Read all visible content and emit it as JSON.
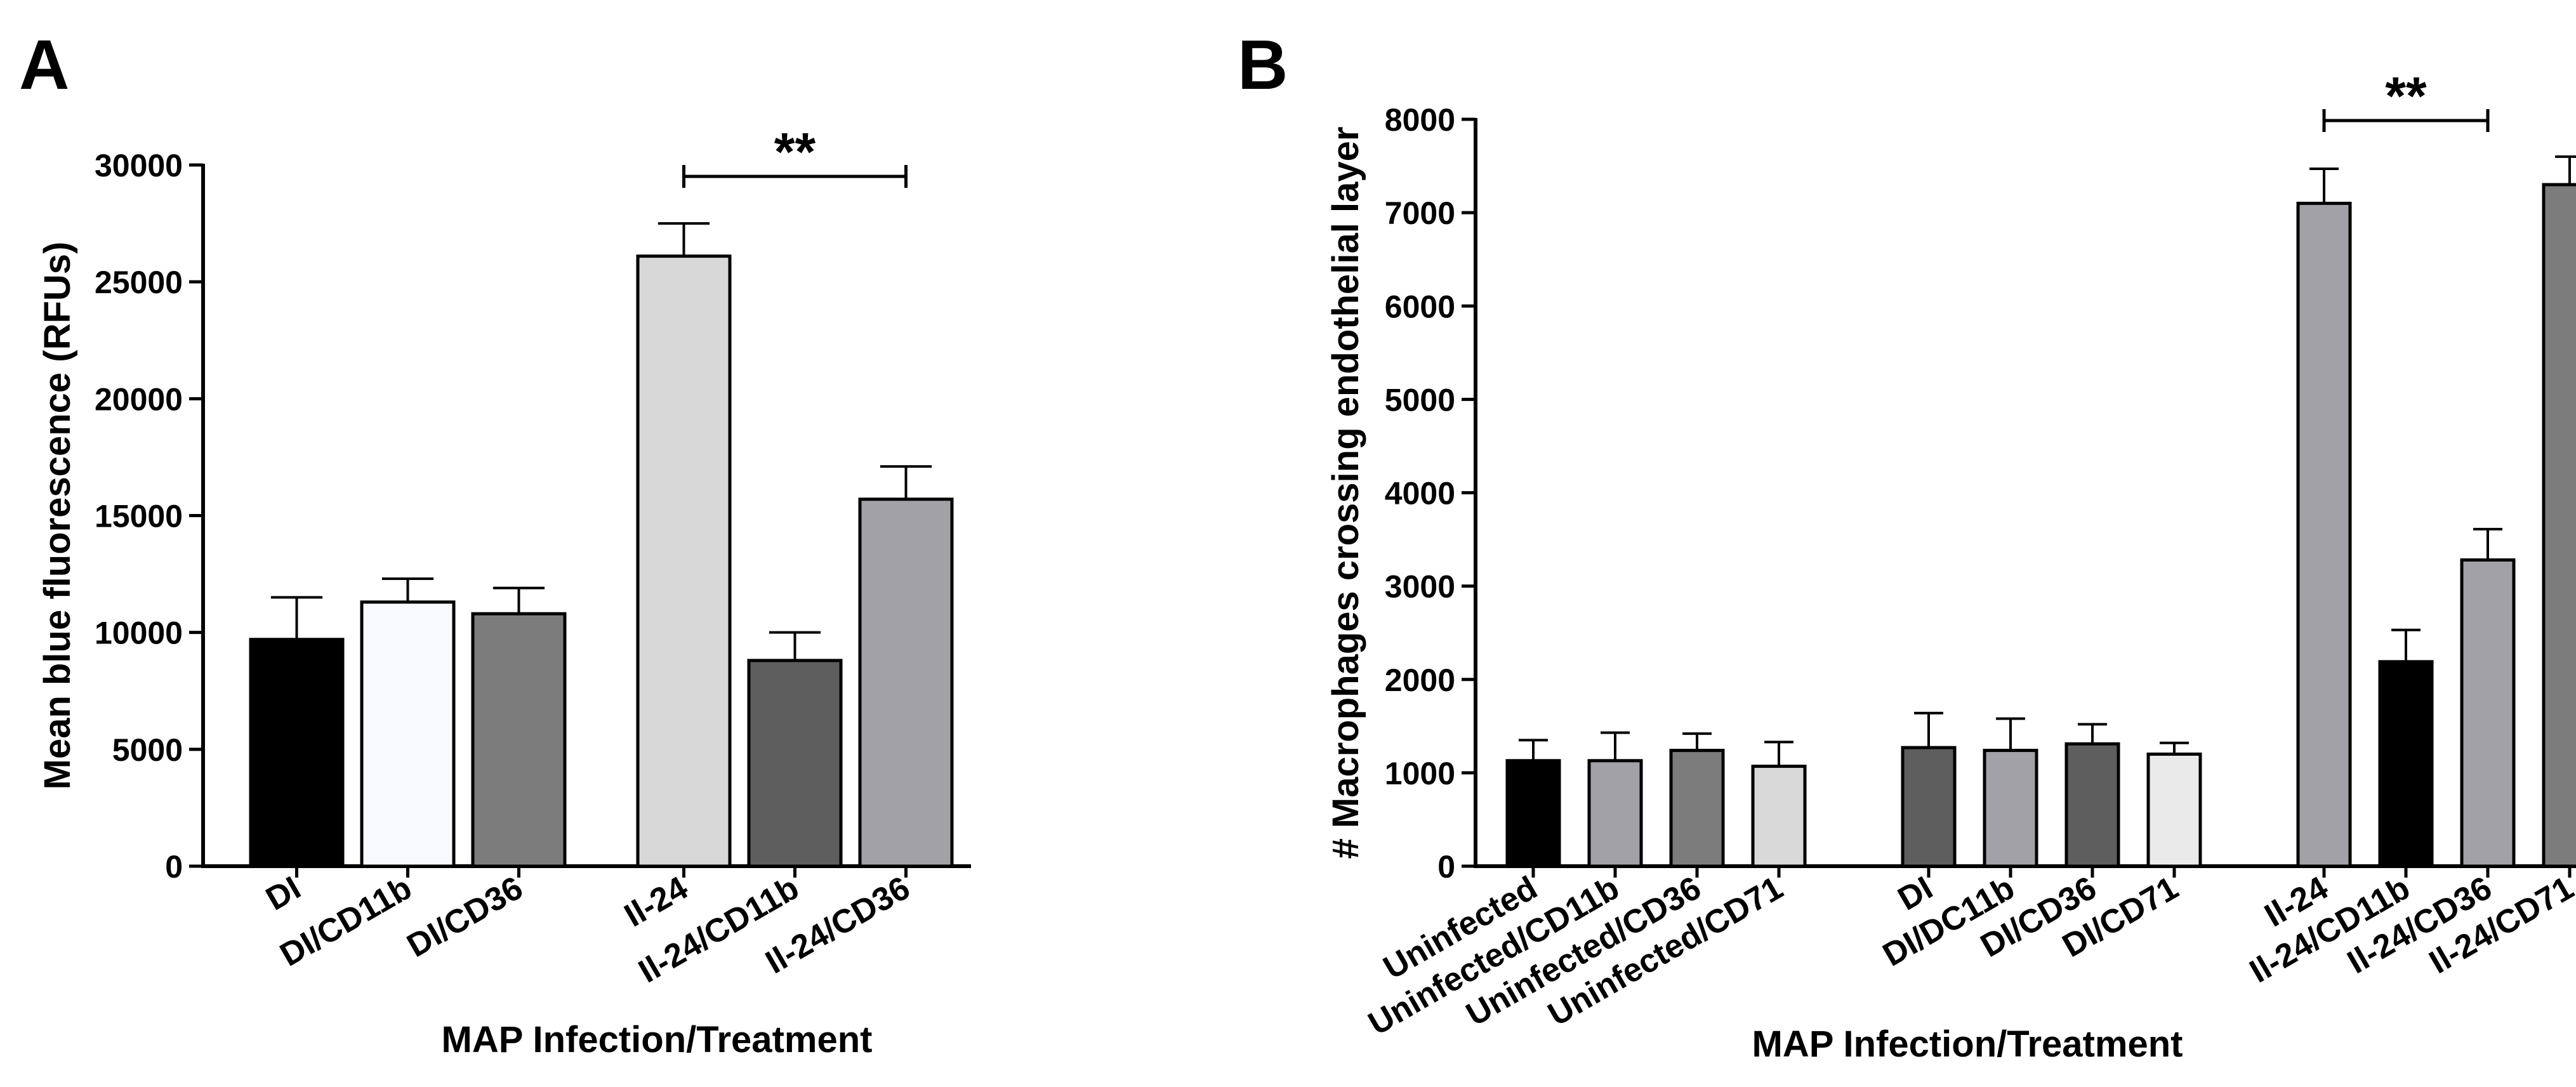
{
  "panels": {
    "A": {
      "label": "A"
    },
    "B": {
      "label": "B"
    }
  },
  "chart_data": [
    {
      "type": "bar",
      "panel": "A",
      "ylabel": "Mean blue fluorescence (RFUs)",
      "xlabel": "MAP Infection/Treatment",
      "ylim": [
        0,
        30000
      ],
      "yticks": [
        0,
        5000,
        10000,
        15000,
        20000,
        25000,
        30000
      ],
      "categories": [
        "DI",
        "DI/CD11b",
        "DI/CD36",
        "Il-24",
        "Il-24/CD11b",
        "Il-24/CD36"
      ],
      "groups": [
        [
          0,
          1,
          2
        ],
        [
          3,
          4,
          5
        ]
      ],
      "values": [
        9700,
        11300,
        10800,
        26100,
        8800,
        15700
      ],
      "errors": [
        1800,
        1000,
        1100,
        1400,
        1200,
        1400
      ],
      "colors": [
        "#000000",
        "#f7f9fd",
        "#7c7c7c",
        "#d8d8d8",
        "#5e5e5e",
        "#a2a1a7"
      ],
      "significance": [
        {
          "from": 3,
          "to": 5,
          "label": "**"
        }
      ]
    },
    {
      "type": "bar",
      "panel": "B",
      "ylabel": "# Macrophages crossing endothelial layer",
      "xlabel": "MAP Infection/Treatment",
      "ylim": [
        0,
        8000
      ],
      "yticks": [
        0,
        1000,
        2000,
        3000,
        4000,
        5000,
        6000,
        7000,
        8000
      ],
      "categories": [
        "Uninfected",
        "Uninfected/CD11b",
        "Uninfected/CD36",
        "Uninfected/CD71",
        "DI",
        "DI/DC11b",
        "DI/CD36",
        "DI/CD71",
        "Il-24",
        "Il-24/CD11b",
        "Il-24/CD36",
        "Il-24/CD71"
      ],
      "groups": [
        [
          0,
          1,
          2,
          3
        ],
        [
          4,
          5,
          6,
          7
        ],
        [
          8,
          9,
          10,
          11
        ]
      ],
      "values": [
        1130,
        1130,
        1240,
        1070,
        1270,
        1240,
        1310,
        1200,
        7100,
        2190,
        3280,
        7300
      ],
      "errors": [
        220,
        300,
        180,
        260,
        370,
        340,
        210,
        120,
        370,
        340,
        330,
        300
      ],
      "colors": [
        "#000000",
        "#a2a1a7",
        "#7c7c7c",
        "#d9d9d9",
        "#5e5e5e",
        "#a2a1a7",
        "#5e5e5e",
        "#eaeaea",
        "#a2a1a7",
        "#000000",
        "#a2a1a7",
        "#7c7c7c"
      ],
      "significance": [
        {
          "from": 8,
          "to": 10,
          "label": "**"
        }
      ]
    }
  ]
}
